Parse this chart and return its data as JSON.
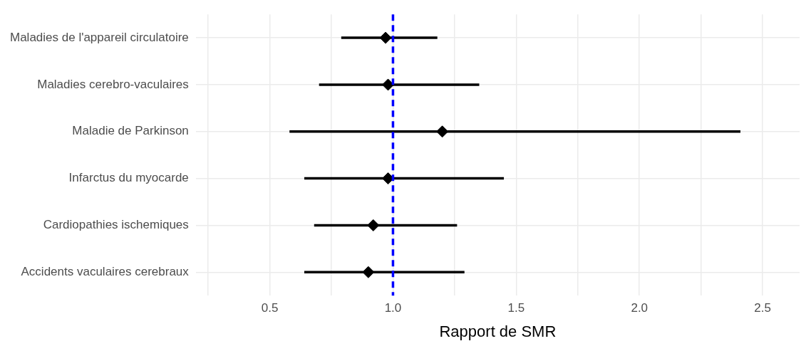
{
  "chart_data": {
    "type": "scatter",
    "orientation": "horizontal",
    "xlabel": "Rapport de SMR",
    "categories": [
      "Maladies de l'appareil circulatoire",
      "Maladies cerebro-vaculaires",
      "Maladie de Parkinson",
      "Infarctus du myocarde",
      "Cardiopathies ischemiques",
      "Accidents vaculaires cerebraux"
    ],
    "series": [
      {
        "color": "#000000",
        "values": [
          0.97,
          0.98,
          1.2,
          0.98,
          0.92,
          0.9
        ],
        "errors": [
          [
            0.79,
            1.18
          ],
          [
            0.7,
            1.35
          ],
          [
            0.58,
            2.41
          ],
          [
            0.64,
            1.45
          ],
          [
            0.68,
            1.26
          ],
          [
            0.64,
            1.29
          ]
        ]
      }
    ],
    "xlim": [
      0.2,
      2.65
    ],
    "xticks": [
      {
        "value": 0.25,
        "label": null
      },
      {
        "value": 0.5,
        "label": "0.5"
      },
      {
        "value": 0.75,
        "label": null
      },
      {
        "value": 1,
        "label": "1.0"
      },
      {
        "value": 1.25,
        "label": null
      },
      {
        "value": 1.5,
        "label": "1.5"
      },
      {
        "value": 1.75,
        "label": null
      },
      {
        "value": 2,
        "label": "2.0"
      },
      {
        "value": 2.25,
        "label": null
      },
      {
        "value": 2.5,
        "label": "2.5"
      }
    ],
    "ref_lines": [
      {
        "axis": "x",
        "value": 1,
        "color": "#0000ff",
        "line_style": "dashed"
      }
    ],
    "marker": "diamond",
    "grid": true,
    "legend": false
  }
}
